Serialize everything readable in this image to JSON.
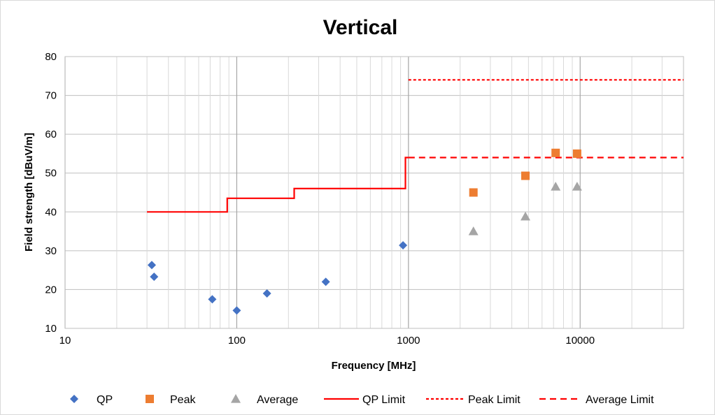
{
  "chart_data": {
    "type": "scatter",
    "title": "Vertical",
    "xlabel": "Frequency [MHz]",
    "ylabel": "Field strength  [dBuV/m]",
    "x_scale": "log",
    "xlim": [
      10,
      40000
    ],
    "ylim": [
      10,
      80
    ],
    "x_ticks": [
      10,
      100,
      1000,
      10000
    ],
    "x_tick_labels": [
      "10",
      "100",
      "1000",
      "10000"
    ],
    "y_ticks": [
      10,
      20,
      30,
      40,
      50,
      60,
      70,
      80
    ],
    "y_tick_labels": [
      "10",
      "20",
      "30",
      "40",
      "50",
      "60",
      "70",
      "80"
    ],
    "grid": true,
    "legend_position": "bottom",
    "series": [
      {
        "name": "QP",
        "kind": "marker",
        "marker": "diamond",
        "color": "#4472C4",
        "points": [
          {
            "x": 32,
            "y": 26.3
          },
          {
            "x": 33,
            "y": 23.3
          },
          {
            "x": 72,
            "y": 17.5
          },
          {
            "x": 100,
            "y": 14.6
          },
          {
            "x": 150,
            "y": 19.0
          },
          {
            "x": 330,
            "y": 22.0
          },
          {
            "x": 930,
            "y": 31.4
          }
        ]
      },
      {
        "name": "Peak",
        "kind": "marker",
        "marker": "square",
        "color": "#ED7D31",
        "points": [
          {
            "x": 2390,
            "y": 45.0
          },
          {
            "x": 4800,
            "y": 49.3
          },
          {
            "x": 7200,
            "y": 55.2
          },
          {
            "x": 9600,
            "y": 55.0
          }
        ]
      },
      {
        "name": "Average",
        "kind": "marker",
        "marker": "triangle",
        "color": "#A5A5A5",
        "points": [
          {
            "x": 2390,
            "y": 35.0
          },
          {
            "x": 4800,
            "y": 38.8
          },
          {
            "x": 7200,
            "y": 46.5
          },
          {
            "x": 9600,
            "y": 46.5
          }
        ]
      },
      {
        "name": "QP Limit",
        "kind": "line",
        "dash": "solid",
        "color": "#FF0000",
        "points": [
          {
            "x": 30,
            "y": 40
          },
          {
            "x": 88,
            "y": 40
          },
          {
            "x": 88,
            "y": 43.5
          },
          {
            "x": 216,
            "y": 43.5
          },
          {
            "x": 216,
            "y": 46
          },
          {
            "x": 960,
            "y": 46
          },
          {
            "x": 960,
            "y": 54
          },
          {
            "x": 1000,
            "y": 54
          }
        ]
      },
      {
        "name": "Peak Limit",
        "kind": "line",
        "dash": "dotted",
        "color": "#FF0000",
        "points": [
          {
            "x": 1000,
            "y": 74
          },
          {
            "x": 40000,
            "y": 74
          }
        ]
      },
      {
        "name": "Average Limit",
        "kind": "line",
        "dash": "dashed",
        "color": "#FF0000",
        "points": [
          {
            "x": 1000,
            "y": 54
          },
          {
            "x": 40000,
            "y": 54
          }
        ]
      }
    ]
  }
}
